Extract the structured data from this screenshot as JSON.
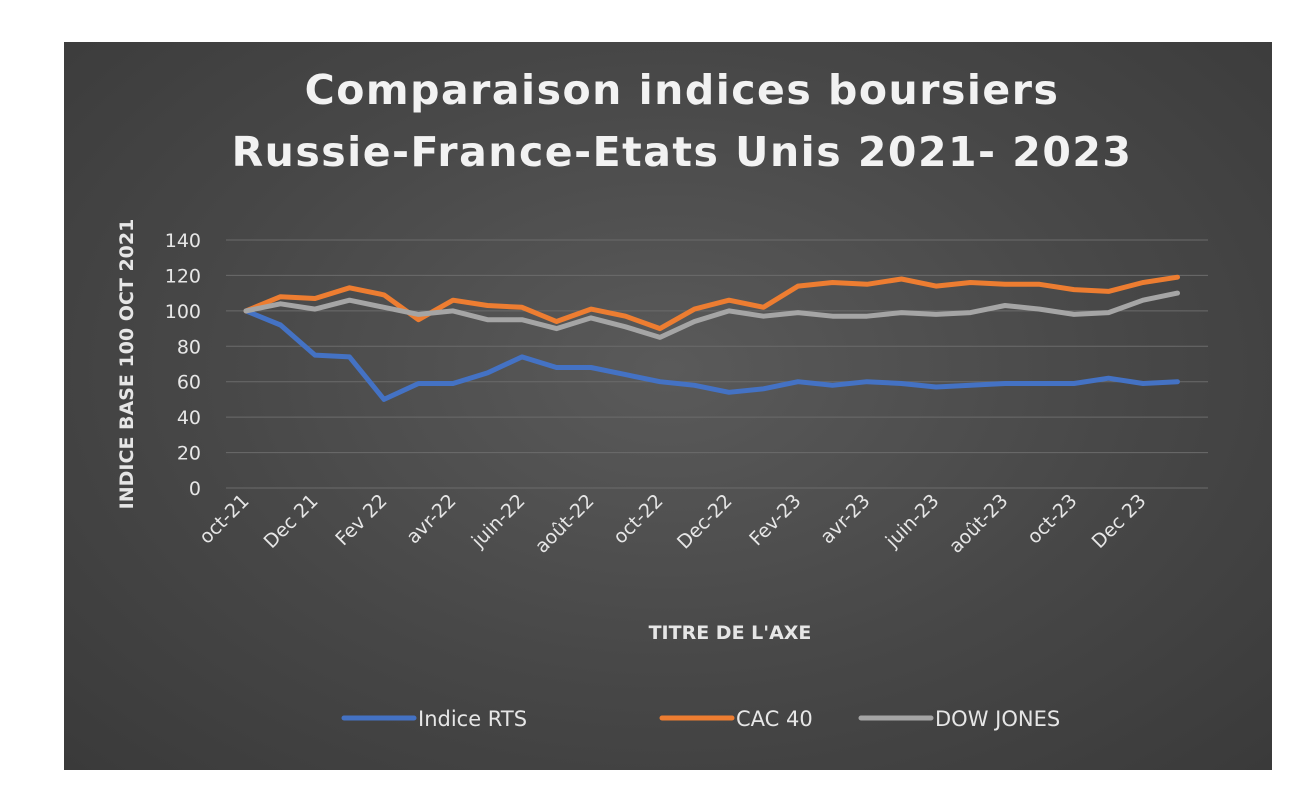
{
  "chart_data": {
    "type": "line",
    "title": [
      "Comparaison indices boursiers",
      "Russie-France-Etats Unis 2021- 2023"
    ],
    "xlabel": "TITRE DE L'AXE",
    "ylabel": "INDICE BASE 100 OCT 2021",
    "ylim": [
      0,
      140
    ],
    "yticks": [
      0,
      20,
      40,
      60,
      80,
      100,
      120,
      140
    ],
    "grid": true,
    "legend_position": "bottom",
    "x_tick_labels": [
      "oct-21",
      "Dec 21",
      "Fev 22",
      "avr-22",
      "juin-22",
      "août-22",
      "oct-22",
      "Dec-22",
      "Fev-23",
      "avr-23",
      "juin-23",
      "août-23",
      "oct-23",
      "Dec 23"
    ],
    "series": [
      {
        "name": "Indice RTS",
        "color": "#4472c4",
        "values": [
          100,
          92,
          75,
          74,
          50,
          59,
          59,
          65,
          74,
          68,
          68,
          64,
          60,
          58,
          54,
          56,
          60,
          58,
          60,
          59,
          57,
          58,
          59,
          59,
          59,
          62,
          59,
          60
        ]
      },
      {
        "name": "CAC 40",
        "color": "#ed7d31",
        "values": [
          100,
          108,
          107,
          113,
          109,
          95,
          106,
          103,
          102,
          94,
          101,
          97,
          90,
          101,
          106,
          102,
          114,
          116,
          115,
          118,
          114,
          116,
          115,
          115,
          112,
          111,
          116,
          119
        ]
      },
      {
        "name": "DOW JONES",
        "color": "#a5a5a5",
        "values": [
          100,
          104,
          101,
          106,
          102,
          98,
          100,
          95,
          95,
          90,
          96,
          91,
          85,
          94,
          100,
          97,
          99,
          97,
          97,
          99,
          98,
          99,
          103,
          101,
          98,
          99,
          106,
          110
        ]
      }
    ]
  }
}
